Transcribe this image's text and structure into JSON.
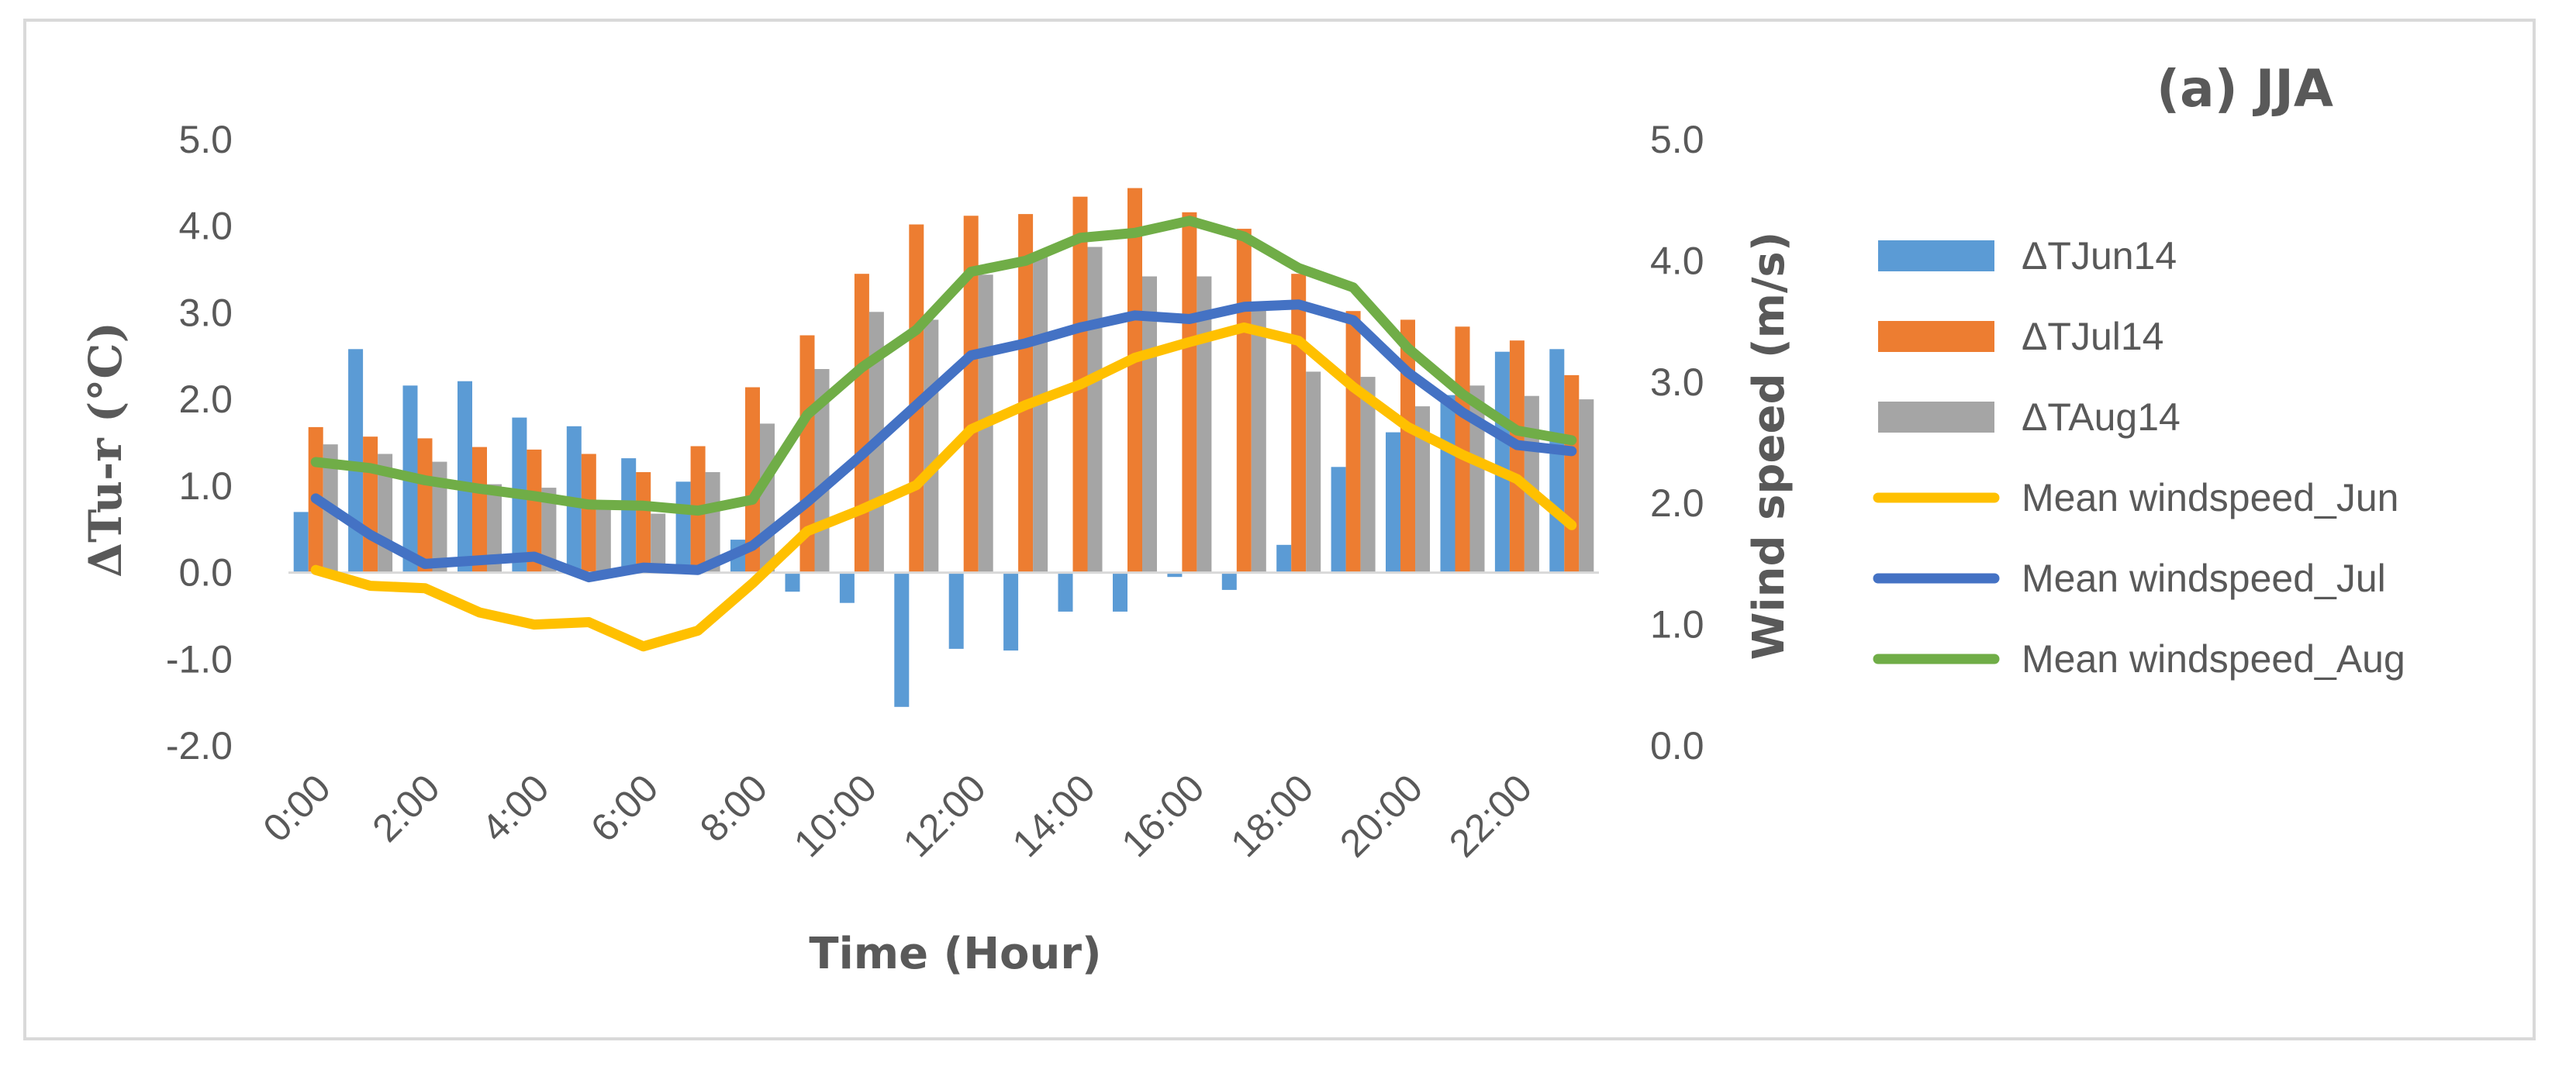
{
  "chart_data": {
    "type": "bar+line",
    "title": "(a) JJA",
    "xlabel": "Time (Hour)",
    "ylabel": "ΔTu-r (°C)",
    "y2label": "Wind speed (m/s)",
    "ylim": [
      -2.0,
      5.0
    ],
    "y2lim": [
      0.0,
      5.0
    ],
    "y_ticks": [
      "5.0",
      "4.0",
      "3.0",
      "2.0",
      "1.0",
      "0.0",
      "-1.0",
      "-2.0"
    ],
    "y2_ticks": [
      "5.0",
      "4.0",
      "3.0",
      "2.0",
      "1.0",
      "0.0"
    ],
    "x_ticks": [
      "0:00",
      "2:00",
      "4:00",
      "6:00",
      "8:00",
      "10:00",
      "12:00",
      "14:00",
      "16:00",
      "18:00",
      "20:00",
      "22:00"
    ],
    "hours": [
      0,
      1,
      2,
      3,
      4,
      5,
      6,
      7,
      8,
      9,
      10,
      11,
      12,
      13,
      14,
      15,
      16,
      17,
      18,
      19,
      20,
      21,
      22,
      23
    ],
    "bar_series": [
      {
        "name": "ΔTJun14",
        "color": "#5b9bd5",
        "values": [
          0.7,
          2.58,
          2.16,
          2.21,
          1.79,
          1.69,
          1.32,
          1.05,
          0.38,
          -0.22,
          -0.35,
          -1.55,
          -0.88,
          -0.9,
          -0.45,
          -0.45,
          -0.05,
          -0.2,
          0.32,
          1.22,
          1.62,
          2.05,
          2.55,
          2.58
        ]
      },
      {
        "name": "ΔTJul14",
        "color": "#ed7d31",
        "values": [
          1.68,
          1.57,
          1.55,
          1.45,
          1.42,
          1.37,
          1.16,
          1.46,
          2.14,
          2.74,
          3.45,
          4.02,
          4.12,
          4.14,
          4.34,
          4.44,
          4.16,
          3.97,
          3.45,
          3.02,
          2.92,
          2.84,
          2.68,
          2.28
        ]
      },
      {
        "name": "ΔTAug14",
        "color": "#a5a5a5",
        "values": [
          1.48,
          1.37,
          1.28,
          1.02,
          0.98,
          0.82,
          0.68,
          1.16,
          1.72,
          2.35,
          3.01,
          2.92,
          3.44,
          3.68,
          3.76,
          3.42,
          3.42,
          3.05,
          2.32,
          2.26,
          1.92,
          2.16,
          2.04,
          2.0
        ]
      }
    ],
    "line_series": [
      {
        "name": "Mean windspeed_Jun",
        "color": "#ffc000",
        "values": [
          1.45,
          1.32,
          1.3,
          1.1,
          1.0,
          1.02,
          0.82,
          0.95,
          1.34,
          1.77,
          1.95,
          2.15,
          2.61,
          2.81,
          2.98,
          3.2,
          3.33,
          3.45,
          3.34,
          2.96,
          2.63,
          2.4,
          2.2,
          1.82
        ]
      },
      {
        "name": "Mean windspeed_Jul",
        "color": "#4472c4",
        "values": [
          2.04,
          1.74,
          1.5,
          1.53,
          1.56,
          1.39,
          1.47,
          1.45,
          1.65,
          2.01,
          2.4,
          2.81,
          3.22,
          3.32,
          3.45,
          3.55,
          3.52,
          3.62,
          3.64,
          3.51,
          3.08,
          2.75,
          2.48,
          2.43
        ]
      },
      {
        "name": "Mean windspeed_Aug",
        "color": "#70ad47",
        "values": [
          2.34,
          2.29,
          2.19,
          2.12,
          2.06,
          1.99,
          1.98,
          1.94,
          2.03,
          2.73,
          3.12,
          3.43,
          3.91,
          4.0,
          4.19,
          4.23,
          4.33,
          4.2,
          3.94,
          3.78,
          3.28,
          2.9,
          2.6,
          2.52
        ]
      }
    ],
    "legend_position": "right"
  }
}
